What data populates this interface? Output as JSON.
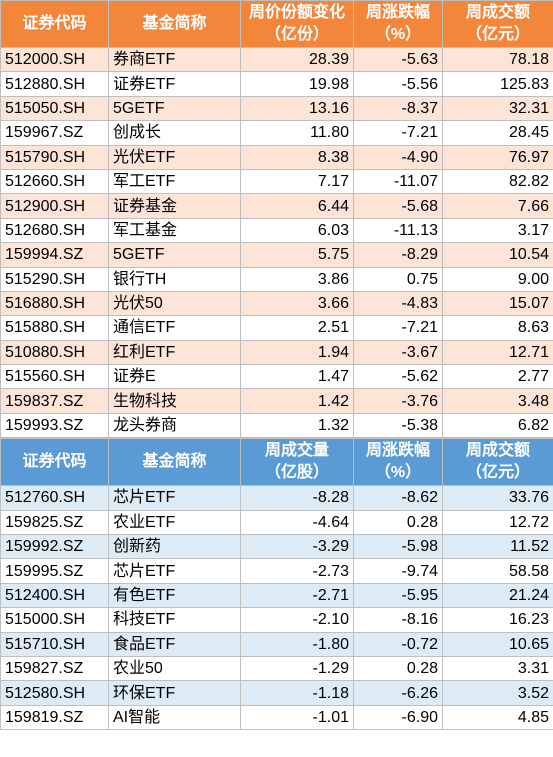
{
  "tables": [
    {
      "header": [
        "证券代码",
        "基金简称",
        [
          "周价份额变化",
          "（亿份）"
        ],
        [
          "周涨跌幅",
          "（%）"
        ],
        [
          "周成交额",
          "（亿元）"
        ]
      ],
      "rows": [
        [
          "512000.SH",
          "券商ETF",
          "28.39",
          "-5.63",
          "78.18"
        ],
        [
          "512880.SH",
          "证券ETF",
          "19.98",
          "-5.56",
          "125.83"
        ],
        [
          "515050.SH",
          "5GETF",
          "13.16",
          "-8.37",
          "32.31"
        ],
        [
          "159967.SZ",
          "创成长",
          "11.80",
          "-7.21",
          "28.45"
        ],
        [
          "515790.SH",
          "光伏ETF",
          "8.38",
          "-4.90",
          "76.97"
        ],
        [
          "512660.SH",
          "军工ETF",
          "7.17",
          "-11.07",
          "82.82"
        ],
        [
          "512900.SH",
          "证券基金",
          "6.44",
          "-5.68",
          "7.66"
        ],
        [
          "512680.SH",
          "军工基金",
          "6.03",
          "-11.13",
          "3.17"
        ],
        [
          "159994.SZ",
          "5GETF",
          "5.75",
          "-8.29",
          "10.54"
        ],
        [
          "515290.SH",
          "银行TH",
          "3.86",
          "0.75",
          "9.00"
        ],
        [
          "516880.SH",
          "光伏50",
          "3.66",
          "-4.83",
          "15.07"
        ],
        [
          "515880.SH",
          "通信ETF",
          "2.51",
          "-7.21",
          "8.63"
        ],
        [
          "510880.SH",
          "红利ETF",
          "1.94",
          "-3.67",
          "12.71"
        ],
        [
          "515560.SH",
          "证券E",
          "1.47",
          "-5.62",
          "2.77"
        ],
        [
          "159837.SZ",
          "生物科技",
          "1.42",
          "-3.76",
          "3.48"
        ],
        [
          "159993.SZ",
          "龙头券商",
          "1.32",
          "-5.38",
          "6.82"
        ]
      ]
    },
    {
      "header": [
        "证券代码",
        "基金简称",
        [
          "周成交量",
          "（亿股）"
        ],
        [
          "周涨跌幅",
          "（%）"
        ],
        [
          "周成交额",
          "（亿元）"
        ]
      ],
      "rows": [
        [
          "512760.SH",
          "芯片ETF",
          "-8.28",
          "-8.62",
          "33.76"
        ],
        [
          "159825.SZ",
          "农业ETF",
          "-4.64",
          "0.28",
          "12.72"
        ],
        [
          "159992.SZ",
          "创新药",
          "-3.29",
          "-5.98",
          "11.52"
        ],
        [
          "159995.SZ",
          "芯片ETF",
          "-2.73",
          "-9.74",
          "58.58"
        ],
        [
          "512400.SH",
          "有色ETF",
          "-2.71",
          "-5.95",
          "21.24"
        ],
        [
          "515000.SH",
          "科技ETF",
          "-2.10",
          "-8.16",
          "16.23"
        ],
        [
          "515710.SH",
          "食品ETF",
          "-1.80",
          "-0.72",
          "10.65"
        ],
        [
          "159827.SZ",
          "农业50",
          "-1.29",
          "0.28",
          "3.31"
        ],
        [
          "512580.SH",
          "环保ETF",
          "-1.18",
          "-6.26",
          "3.52"
        ],
        [
          "159819.SZ",
          "AI智能",
          "-1.01",
          "-6.90",
          "4.85"
        ]
      ]
    }
  ]
}
